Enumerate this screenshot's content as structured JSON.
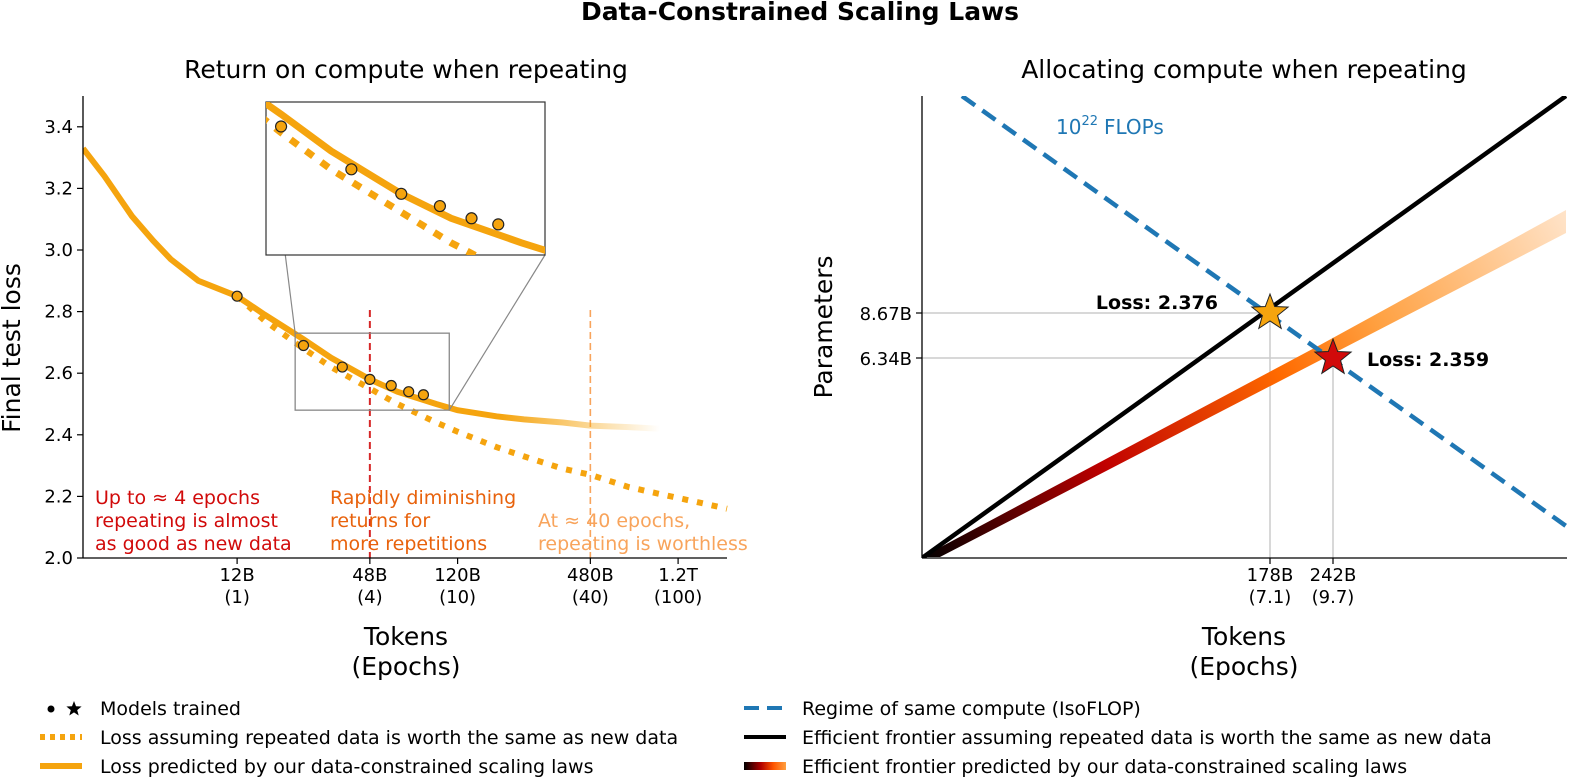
{
  "figure": {
    "title": "Data-Constrained Scaling Laws"
  },
  "colors": {
    "orange": "#F5A40E",
    "red_line": "#D62728",
    "dark_orange": "#E8620C",
    "light_orange": "#F8A45C",
    "blue": "#1F77B4",
    "black": "#000000",
    "star_red": "#D10A0A",
    "grid": "#cccccc",
    "inset_frame": "#888888"
  },
  "chart_data": [
    {
      "type": "line",
      "title": "Return on compute when repeating",
      "xlabel": [
        "Tokens",
        "(Epochs)"
      ],
      "ylabel": "Final test loss",
      "x_scale": "log",
      "ylim": [
        2.0,
        3.5
      ],
      "y_ticks": [
        "2.0",
        "2.2",
        "2.4",
        "2.6",
        "2.8",
        "3.0",
        "3.2",
        "3.4"
      ],
      "x_ticks": [
        {
          "tokens": "12B",
          "epochs": "(1)",
          "x_tokens_billions": 12
        },
        {
          "tokens": "48B",
          "epochs": "(4)",
          "x_tokens_billions": 48
        },
        {
          "tokens": "120B",
          "epochs": "(10)",
          "x_tokens_billions": 120
        },
        {
          "tokens": "480B",
          "epochs": "(40)",
          "x_tokens_billions": 480
        },
        {
          "tokens": "1.2T",
          "epochs": "(100)",
          "x_tokens_billions": 1200
        }
      ],
      "series": [
        {
          "name": "Loss predicted by our data-constrained scaling laws",
          "style": "solid",
          "x_tokens_billions": [
            2.4,
            3,
            4,
            5,
            6,
            8,
            12,
            16,
            24,
            32,
            48,
            64,
            96,
            120,
            180,
            240,
            360,
            480,
            720,
            960,
            1200
          ],
          "y": [
            3.33,
            3.24,
            3.11,
            3.03,
            2.97,
            2.9,
            2.85,
            2.79,
            2.71,
            2.65,
            2.58,
            2.54,
            2.5,
            2.48,
            2.46,
            2.45,
            2.44,
            2.43,
            2.425,
            2.42,
            2.42
          ]
        },
        {
          "name": "Loss assuming repeated data is worth the same as new data",
          "style": "dotted",
          "x_tokens_billions": [
            12,
            16,
            24,
            32,
            48,
            64,
            96,
            120,
            180,
            240,
            360,
            480,
            720,
            960,
            1500,
            2000
          ],
          "y": [
            2.85,
            2.77,
            2.68,
            2.62,
            2.55,
            2.5,
            2.44,
            2.41,
            2.36,
            2.33,
            2.29,
            2.27,
            2.23,
            2.21,
            2.18,
            2.16
          ]
        }
      ],
      "models_trained": {
        "x_tokens_billions": [
          12,
          24,
          36,
          48,
          60,
          72,
          84
        ],
        "y": [
          2.85,
          2.69,
          2.62,
          2.58,
          2.56,
          2.54,
          2.53
        ]
      },
      "vertical_lines": [
        {
          "x_tokens_billions": 48,
          "color": "#D62728"
        },
        {
          "x_tokens_billions": 480,
          "color": "#F8A45C"
        }
      ],
      "inset": {
        "x_range_billions": [
          22,
          110
        ],
        "y_range": [
          2.48,
          2.73
        ]
      },
      "annotations": [
        {
          "lines": [
            "Up to ≈ 4 epochs",
            "repeating is almost",
            "as good as new data"
          ],
          "color": "#D10A0A"
        },
        {
          "lines": [
            "Rapidly diminishing",
            "returns for",
            "more repetitions"
          ],
          "color": "#E8620C"
        },
        {
          "lines": [
            "At ≈ 40 epochs,",
            "repeating is worthless"
          ],
          "color": "#F8A45C"
        }
      ]
    },
    {
      "type": "line",
      "title": "Allocating compute when repeating",
      "xlabel": [
        "Tokens",
        "(Epochs)"
      ],
      "ylabel": "Parameters",
      "x_scale": "log",
      "y_scale": "log",
      "x_ticks": [
        {
          "tokens": "178B",
          "epochs": "(7.1)",
          "x_tokens_billions": 178
        },
        {
          "tokens": "242B",
          "epochs": "(9.7)",
          "x_tokens_billions": 242
        }
      ],
      "y_ticks": [
        {
          "label": "8.67B",
          "params_billions": 8.67
        },
        {
          "label": "6.34B",
          "params_billions": 6.34
        }
      ],
      "isoflop_label": {
        "base": "10",
        "exponent": "22",
        "unit": "FLOPs"
      },
      "series": [
        {
          "name": "Regime of same compute (IsoFLOP)",
          "style": "dashed",
          "color": "#1F77B4"
        },
        {
          "name": "Efficient frontier assuming repeated data is worth the same as new data",
          "style": "solid",
          "color": "#000000"
        },
        {
          "name": "Efficient frontier predicted by our data-constrained scaling laws",
          "style": "gradient"
        }
      ],
      "stars": [
        {
          "label": "Loss: 2.376",
          "x_tokens_billions": 178,
          "params_billions": 8.67,
          "color": "#F5A40E"
        },
        {
          "label": "Loss: 2.359",
          "x_tokens_billions": 242,
          "params_billions": 6.34,
          "color": "#D10A0A"
        }
      ]
    }
  ],
  "legend": {
    "left": [
      {
        "marker": "dot-star",
        "label": "Models trained"
      },
      {
        "marker": "dotted",
        "label": "Loss assuming repeated data is worth the same as new data"
      },
      {
        "marker": "solid",
        "label": "Loss predicted by our data-constrained scaling laws"
      }
    ],
    "right": [
      {
        "marker": "dashed",
        "label": "Regime of same compute (IsoFLOP)"
      },
      {
        "marker": "black",
        "label": "Efficient frontier assuming repeated data is worth the same as new data"
      },
      {
        "marker": "gradient",
        "label": "Efficient frontier predicted by our data-constrained scaling laws"
      }
    ]
  }
}
